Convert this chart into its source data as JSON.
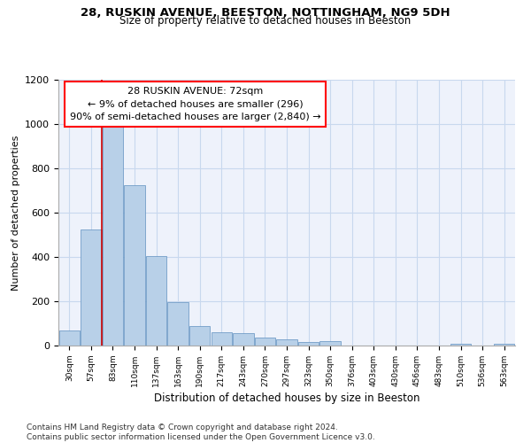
{
  "title": "28, RUSKIN AVENUE, BEESTON, NOTTINGHAM, NG9 5DH",
  "subtitle": "Size of property relative to detached houses in Beeston",
  "xlabel": "Distribution of detached houses by size in Beeston",
  "ylabel": "Number of detached properties",
  "categories": [
    "30sqm",
    "57sqm",
    "83sqm",
    "110sqm",
    "137sqm",
    "163sqm",
    "190sqm",
    "217sqm",
    "243sqm",
    "270sqm",
    "297sqm",
    "323sqm",
    "350sqm",
    "376sqm",
    "403sqm",
    "430sqm",
    "456sqm",
    "483sqm",
    "510sqm",
    "536sqm",
    "563sqm"
  ],
  "values": [
    70,
    525,
    1000,
    725,
    405,
    195,
    90,
    60,
    55,
    35,
    30,
    15,
    20,
    0,
    0,
    0,
    0,
    0,
    10,
    0,
    10
  ],
  "bar_color": "#b8d0e8",
  "bar_edge_color": "#6090c0",
  "grid_color": "#c8d8ee",
  "background_color": "#eef2fb",
  "vline_color": "#cc0000",
  "vline_pos": 1.5,
  "annotation_text": "28 RUSKIN AVENUE: 72sqm\n← 9% of detached houses are smaller (296)\n90% of semi-detached houses are larger (2,840) →",
  "footer": "Contains HM Land Registry data © Crown copyright and database right 2024.\nContains public sector information licensed under the Open Government Licence v3.0.",
  "ylim": [
    0,
    1200
  ],
  "yticks": [
    0,
    200,
    400,
    600,
    800,
    1000,
    1200
  ]
}
